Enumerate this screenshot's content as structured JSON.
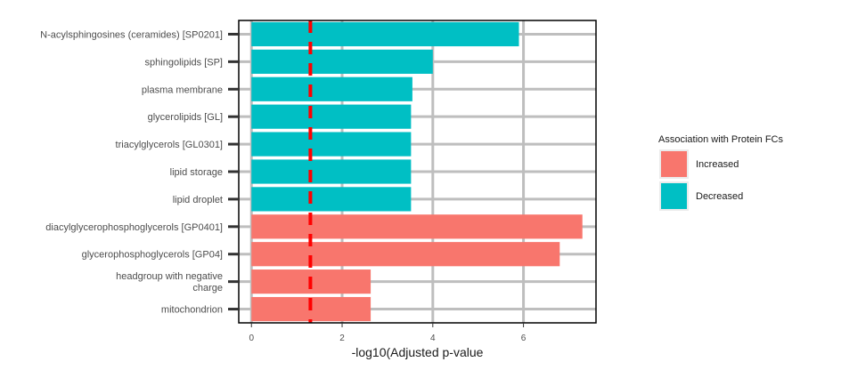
{
  "chart_data": {
    "type": "bar",
    "orientation": "horizontal",
    "categories": [
      "N-acylsphingosines (ceramides) [SP0201]",
      "sphingolipids [SP]",
      "plasma membrane",
      "glycerolipids [GL]",
      "triacylglycerols [GL0301]",
      "lipid storage",
      "lipid droplet",
      "diacylglycerophosphoglycerols [GP0401]",
      "glycerophosphoglycerols [GP04]",
      [
        "headgroup with negative",
        "charge"
      ],
      "mitochondrion"
    ],
    "values": [
      5.9,
      4.0,
      3.55,
      3.52,
      3.52,
      3.52,
      3.52,
      7.3,
      6.8,
      2.63,
      2.63
    ],
    "groups": [
      "Decreased",
      "Decreased",
      "Decreased",
      "Decreased",
      "Decreased",
      "Decreased",
      "Decreased",
      "Increased",
      "Increased",
      "Increased",
      "Increased"
    ],
    "xlabel": "-log10(Adjusted p-value",
    "xticks": [
      0,
      2,
      4,
      6
    ],
    "xlim": [
      -0.28,
      7.6
    ],
    "threshold": 1.3,
    "grid": true,
    "legend": {
      "title": "Association with Protein FCs",
      "position": "right",
      "entries": [
        {
          "label": "Increased",
          "color": "#F8766D"
        },
        {
          "label": "Decreased",
          "color": "#00BFC4"
        }
      ]
    },
    "colors": {
      "Increased": "#F8766D",
      "Decreased": "#00BFC4",
      "threshold": "#FF0000",
      "grid": "#BEBEBE"
    }
  }
}
